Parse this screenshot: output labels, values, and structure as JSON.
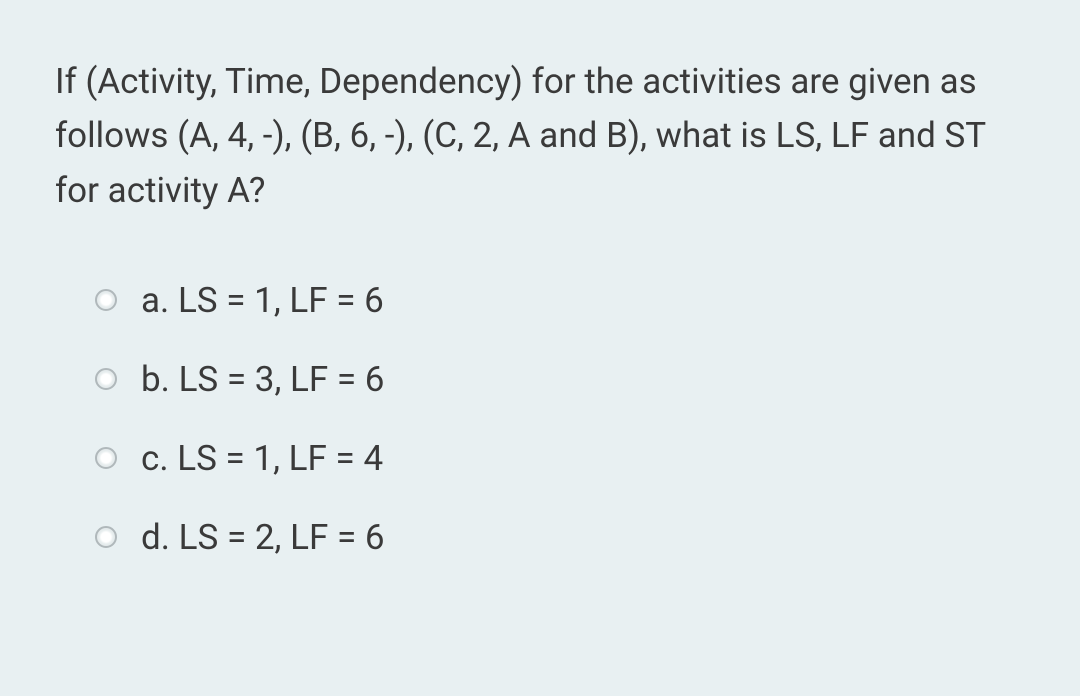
{
  "question": {
    "text": "If (Activity, Time, Dependency) for the activities are given as follows (A, 4, -), (B, 6, -), (C, 2, A and B), what is LS, LF and ST for activity A?",
    "font_size": 35,
    "text_color": "#3a3a3a",
    "line_height": 1.55
  },
  "options": [
    {
      "letter": "a",
      "text": "a. LS = 1, LF = 6"
    },
    {
      "letter": "b",
      "text": "b. LS = 3, LF = 6"
    },
    {
      "letter": "c",
      "text": "c. LS = 1, LF = 4"
    },
    {
      "letter": "d",
      "text": "d. LS = 2, LF = 6"
    }
  ],
  "styling": {
    "card_background": "#e8f0f2",
    "card_padding": "55px",
    "option_font_size": 35,
    "option_text_color": "#3a3a3a",
    "radio_border_color": "#b0b8bb",
    "radio_size": 22,
    "option_spacing": 30,
    "options_indent": 40,
    "question_option_gap": 58
  }
}
